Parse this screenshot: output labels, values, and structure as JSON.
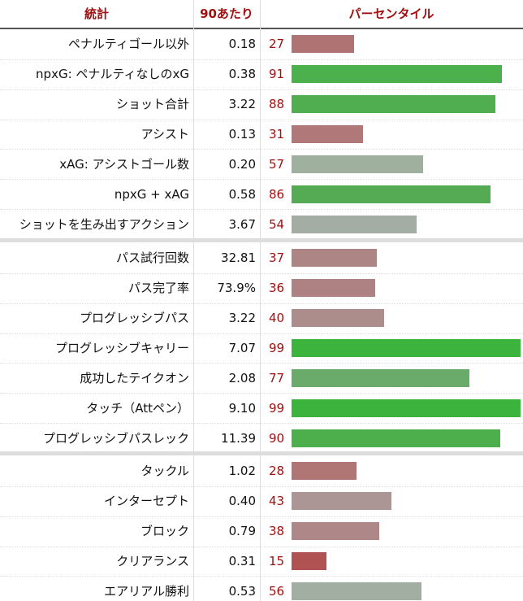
{
  "header": {
    "columns": [
      "統計",
      "90あたり",
      "パーセンタイル"
    ]
  },
  "groups": [
    {
      "rows": [
        {
          "stat": "ペナルティゴール以外",
          "per90": "0.18",
          "percentile": 27,
          "color": "#b07373"
        },
        {
          "stat": "npxG: ペナルティなしのxG",
          "per90": "0.38",
          "percentile": 91,
          "color": "#4cb04c"
        },
        {
          "stat": "ショット合計",
          "per90": "3.22",
          "percentile": 88,
          "color": "#50ad50"
        },
        {
          "stat": "アシスト",
          "per90": "0.13",
          "percentile": 31,
          "color": "#b07878"
        },
        {
          "stat": "xAG: アシストゴール数",
          "per90": "0.20",
          "percentile": 57,
          "color": "#9fb09f"
        },
        {
          "stat": "npxG + xAG",
          "per90": "0.58",
          "percentile": 86,
          "color": "#54ab54"
        },
        {
          "stat": "ショットを生み出すアクション",
          "per90": "3.67",
          "percentile": 54,
          "color": "#a3ada3"
        }
      ]
    },
    {
      "rows": [
        {
          "stat": "パス試行回数",
          "per90": "32.81",
          "percentile": 37,
          "color": "#ae8585"
        },
        {
          "stat": "パス完了率",
          "per90": "73.9%",
          "percentile": 36,
          "color": "#ae8282"
        },
        {
          "stat": "プログレッシブパス",
          "per90": "3.22",
          "percentile": 40,
          "color": "#ad8c8c"
        },
        {
          "stat": "プログレッシブキャリー",
          "per90": "7.07",
          "percentile": 99,
          "color": "#3cb33c"
        },
        {
          "stat": "成功したテイクオン",
          "per90": "2.08",
          "percentile": 77,
          "color": "#6aaa6a"
        },
        {
          "stat": "タッチ（Attペン）",
          "per90": "9.10",
          "percentile": 99,
          "color": "#3cb33c"
        },
        {
          "stat": "プログレッシブパスレック",
          "per90": "11.39",
          "percentile": 90,
          "color": "#4caf4c"
        }
      ]
    },
    {
      "rows": [
        {
          "stat": "タックル",
          "per90": "1.02",
          "percentile": 28,
          "color": "#b07575"
        },
        {
          "stat": "インターセプト",
          "per90": "0.40",
          "percentile": 43,
          "color": "#ac9595"
        },
        {
          "stat": "ブロック",
          "per90": "0.79",
          "percentile": 38,
          "color": "#ae8888"
        },
        {
          "stat": "クリアランス",
          "per90": "0.31",
          "percentile": 15,
          "color": "#b05252"
        },
        {
          "stat": "エアリアル勝利",
          "per90": "0.53",
          "percentile": 56,
          "color": "#a1aea1"
        }
      ]
    }
  ]
}
